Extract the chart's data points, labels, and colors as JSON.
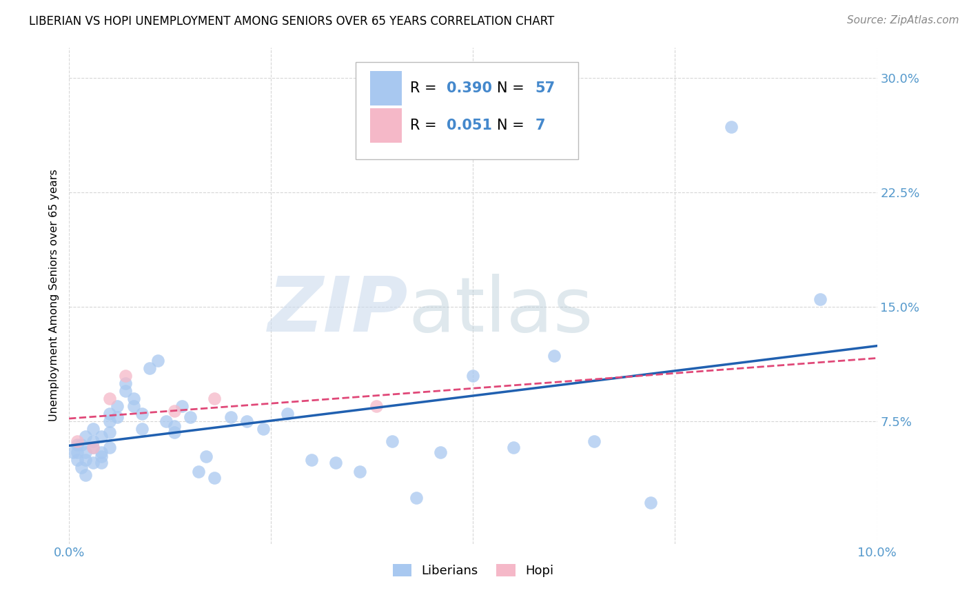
{
  "title": "LIBERIAN VS HOPI UNEMPLOYMENT AMONG SENIORS OVER 65 YEARS CORRELATION CHART",
  "source": "Source: ZipAtlas.com",
  "ylabel": "Unemployment Among Seniors over 65 years",
  "xlim": [
    0.0,
    0.1
  ],
  "ylim": [
    -0.005,
    0.32
  ],
  "liberian_color": "#a8c8f0",
  "hopi_color": "#f5b8c8",
  "liberian_line_color": "#2060b0",
  "hopi_line_color": "#e04878",
  "liberian_R": 0.39,
  "liberian_N": 57,
  "hopi_R": 0.051,
  "hopi_N": 7,
  "liberian_x": [
    0.0005,
    0.001,
    0.001,
    0.001,
    0.0015,
    0.0015,
    0.002,
    0.002,
    0.002,
    0.002,
    0.003,
    0.003,
    0.003,
    0.003,
    0.004,
    0.004,
    0.004,
    0.004,
    0.005,
    0.005,
    0.005,
    0.005,
    0.006,
    0.006,
    0.007,
    0.007,
    0.008,
    0.008,
    0.009,
    0.009,
    0.01,
    0.011,
    0.012,
    0.013,
    0.013,
    0.014,
    0.015,
    0.016,
    0.017,
    0.018,
    0.02,
    0.022,
    0.024,
    0.027,
    0.03,
    0.033,
    0.036,
    0.04,
    0.043,
    0.046,
    0.05,
    0.055,
    0.06,
    0.065,
    0.072,
    0.082,
    0.093
  ],
  "liberian_y": [
    0.055,
    0.06,
    0.05,
    0.055,
    0.045,
    0.06,
    0.04,
    0.055,
    0.065,
    0.05,
    0.048,
    0.058,
    0.062,
    0.07,
    0.055,
    0.065,
    0.052,
    0.048,
    0.075,
    0.068,
    0.08,
    0.058,
    0.085,
    0.078,
    0.095,
    0.1,
    0.09,
    0.085,
    0.07,
    0.08,
    0.11,
    0.115,
    0.075,
    0.072,
    0.068,
    0.085,
    0.078,
    0.042,
    0.052,
    0.038,
    0.078,
    0.075,
    0.07,
    0.08,
    0.05,
    0.048,
    0.042,
    0.062,
    0.025,
    0.055,
    0.105,
    0.058,
    0.118,
    0.062,
    0.022,
    0.268,
    0.155
  ],
  "hopi_x": [
    0.001,
    0.003,
    0.005,
    0.007,
    0.013,
    0.018,
    0.038
  ],
  "hopi_y": [
    0.062,
    0.058,
    0.09,
    0.105,
    0.082,
    0.09,
    0.085
  ],
  "background_color": "#ffffff",
  "grid_color": "#cccccc"
}
